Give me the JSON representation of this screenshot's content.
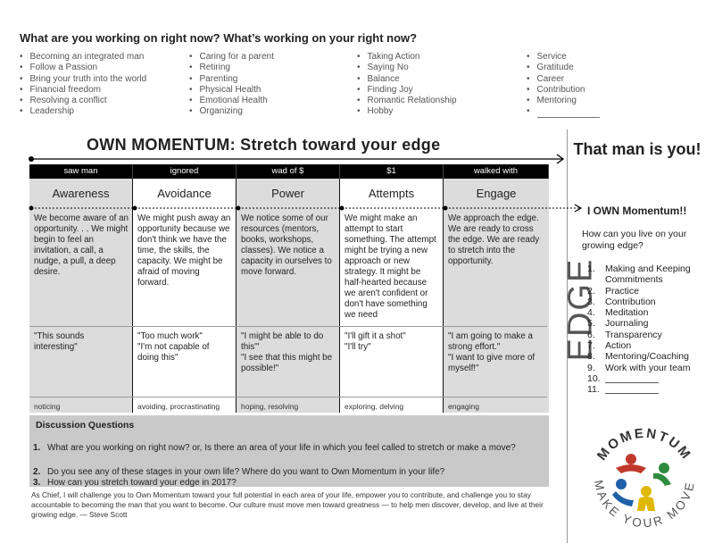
{
  "header": {
    "question": "What are you working on right now?  What’s working on your right now?"
  },
  "topics": [
    [
      "Becoming an integrated man",
      "Follow a Passion",
      "Bring your truth into the world",
      "Financial freedom",
      "Resolving a conflict",
      "Leadership"
    ],
    [
      "Caring for a parent",
      "Retiring",
      "Parenting",
      "Physical Health",
      "Emotional Health",
      "Organizing"
    ],
    [
      "Taking Action",
      "Saying No",
      "Balance",
      "Finding Joy",
      "Romantic Relationship",
      "Hobby"
    ],
    [
      "Service",
      "Gratitude",
      "Career",
      "Contribution",
      "Mentoring"
    ]
  ],
  "title": "OWN MOMENTUM: Stretch toward your edge",
  "stages": [
    {
      "head": "saw man",
      "name": "Awareness",
      "desc": "We become aware of an opportunity. . .  We might begin to feel an invitation, a call, a nudge, a pull, a deep desire.",
      "quote": "\"This sounds interesting\"",
      "verbs": "noticing"
    },
    {
      "head": "ignored",
      "name": "Avoidance",
      "desc": "We might push away an opportunity because we don't think we have the time, the skills, the capacity.  We might be afraid of moving forward.",
      "quote": "\"Too much work\"\n\"I'm not capable of doing this\"",
      "verbs": "avoiding, procrastinating"
    },
    {
      "head": "wad of $",
      "name": "Power",
      "desc": "We notice some of our resources (mentors, books, workshops, classes).  We notice a capacity in ourselves to move forward.",
      "quote": "\"I might be able to do this\"'\n\"I see that this might be possible!\"",
      "verbs": "hoping, resolving"
    },
    {
      "head": "$1",
      "name": "Attempts",
      "desc": "We might make an attempt to start something.  The attempt might be trying a new approach or new strategy.  It might be half-hearted because we aren't confident or don't have something we need",
      "quote": "\"I'll gift it a shot\"\n\"I'll try\"",
      "verbs": "exploring, delving"
    },
    {
      "head": "walked with",
      "name": "Engage",
      "desc": "We approach the edge.  We are ready to cross the edge.  We are ready to stretch into the opportunity.",
      "quote": "\"I am going to make a strong effort.\"\n\"I want to give more of myself!\"",
      "verbs": "engaging"
    }
  ],
  "discussion": {
    "title": "Discussion Questions",
    "items": [
      {
        "num": "1.",
        "text": "What are you working on right now?  or, Is there an area of your life in which you feel called to stretch or make a move?"
      },
      {
        "num": "2.",
        "text": "Do you see any of these stages in your own life?  Where do you want to Own Momentum in your life?"
      },
      {
        "num": "3.",
        "text": "How can you stretch toward your edge in 2017?"
      }
    ]
  },
  "closing": "As Chief, I will challenge you to Own Momentum toward your full potential in each area of your life, empower you to contribute, and challenge you to stay accountable to becoming the man that you want to become. Our culture must move men toward greatness — to help men discover, develop, and live at their growing edge.  — Steve Scott",
  "edge_word": "EDGE",
  "right": {
    "that_man": "That man is you!",
    "own_momentum": "I OWN Momentum!!",
    "question": "How can you live on your growing edge?",
    "list": [
      {
        "n": "1.",
        "t": "Making and Keeping Commitments"
      },
      {
        "n": "2.",
        "t": "Practice"
      },
      {
        "n": "3.",
        "t": "Contribution"
      },
      {
        "n": "4.",
        "t": "Meditation"
      },
      {
        "n": "5.",
        "t": "Journaling"
      },
      {
        "n": "6.",
        "t": "Transparency"
      },
      {
        "n": "7.",
        "t": "Action"
      },
      {
        "n": "8.",
        "t": "Mentoring/Coaching"
      },
      {
        "n": "9.",
        "t": "Work with your team"
      },
      {
        "n": "10.",
        "t": ""
      },
      {
        "n": "11.",
        "t": ""
      }
    ]
  },
  "logo": {
    "top_text": "MOMENTUM",
    "bottom_text": "MAKE YOUR MOVE",
    "colors": [
      "#c0392b",
      "#2e8b3d",
      "#e0b800",
      "#1f5fa8"
    ]
  }
}
